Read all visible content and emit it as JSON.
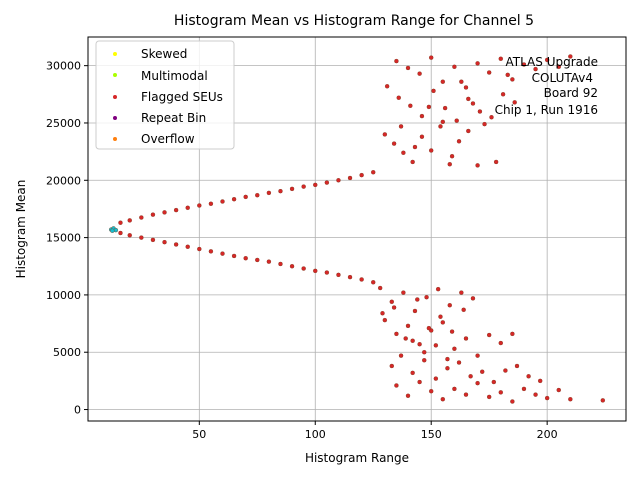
{
  "chart_data": {
    "type": "scatter",
    "title": "Histogram Mean vs Histogram Range for Channel 5",
    "xlabel": "Histogram Range",
    "ylabel": "Histogram Mean",
    "xlim": [
      2,
      234
    ],
    "ylim": [
      -1000,
      32500
    ],
    "xticks": [
      50,
      100,
      150,
      200
    ],
    "yticks": [
      0,
      5000,
      10000,
      15000,
      20000,
      25000,
      30000
    ],
    "grid": true,
    "legend_position": "top-left",
    "annotation": [
      "ATLAS Upgrade",
      "COLUTAv4",
      "Board 92",
      "Chip 1, Run 1916"
    ],
    "series": [
      {
        "name": "Skewed",
        "color": "#ffff00",
        "points": []
      },
      {
        "name": "Multimodal",
        "color": "#aaff00",
        "points": []
      },
      {
        "name": "Flagged SEUs",
        "color": "#d62728",
        "points": [
          [
            16,
            16300
          ],
          [
            20,
            16500
          ],
          [
            25,
            16750
          ],
          [
            30,
            17000
          ],
          [
            35,
            17200
          ],
          [
            40,
            17400
          ],
          [
            45,
            17600
          ],
          [
            50,
            17800
          ],
          [
            55,
            17950
          ],
          [
            60,
            18150
          ],
          [
            65,
            18350
          ],
          [
            70,
            18550
          ],
          [
            75,
            18700
          ],
          [
            80,
            18900
          ],
          [
            85,
            19050
          ],
          [
            90,
            19250
          ],
          [
            95,
            19450
          ],
          [
            100,
            19600
          ],
          [
            105,
            19800
          ],
          [
            110,
            20000
          ],
          [
            115,
            20200
          ],
          [
            120,
            20450
          ],
          [
            125,
            20700
          ],
          [
            16,
            15400
          ],
          [
            20,
            15200
          ],
          [
            25,
            15000
          ],
          [
            30,
            14800
          ],
          [
            35,
            14600
          ],
          [
            40,
            14400
          ],
          [
            45,
            14200
          ],
          [
            50,
            14000
          ],
          [
            55,
            13800
          ],
          [
            60,
            13600
          ],
          [
            65,
            13400
          ],
          [
            70,
            13200
          ],
          [
            75,
            13050
          ],
          [
            80,
            12900
          ],
          [
            85,
            12700
          ],
          [
            90,
            12500
          ],
          [
            95,
            12300
          ],
          [
            100,
            12100
          ],
          [
            105,
            11950
          ],
          [
            110,
            11750
          ],
          [
            115,
            11550
          ],
          [
            120,
            11350
          ],
          [
            125,
            11100
          ],
          [
            135,
            30400
          ],
          [
            140,
            29800
          ],
          [
            145,
            29300
          ],
          [
            150,
            30700
          ],
          [
            155,
            28600
          ],
          [
            160,
            29900
          ],
          [
            165,
            28100
          ],
          [
            170,
            30200
          ],
          [
            175,
            29400
          ],
          [
            180,
            30600
          ],
          [
            185,
            28800
          ],
          [
            190,
            30100
          ],
          [
            195,
            29700
          ],
          [
            200,
            30500
          ],
          [
            205,
            29900
          ],
          [
            210,
            30800
          ],
          [
            136,
            27200
          ],
          [
            141,
            26500
          ],
          [
            146,
            25600
          ],
          [
            151,
            27800
          ],
          [
            156,
            26300
          ],
          [
            161,
            25200
          ],
          [
            166,
            27100
          ],
          [
            171,
            26000
          ],
          [
            176,
            25500
          ],
          [
            181,
            27500
          ],
          [
            186,
            26800
          ],
          [
            130,
            24000
          ],
          [
            134,
            23200
          ],
          [
            138,
            22400
          ],
          [
            142,
            21600
          ],
          [
            146,
            23800
          ],
          [
            150,
            22600
          ],
          [
            154,
            24700
          ],
          [
            158,
            21400
          ],
          [
            162,
            23400
          ],
          [
            166,
            24300
          ],
          [
            170,
            21300
          ],
          [
            178,
            21600
          ],
          [
            131,
            28200
          ],
          [
            137,
            24700
          ],
          [
            143,
            22900
          ],
          [
            149,
            26400
          ],
          [
            155,
            25100
          ],
          [
            159,
            22100
          ],
          [
            163,
            28600
          ],
          [
            168,
            26700
          ],
          [
            173,
            24900
          ],
          [
            183,
            29200
          ],
          [
            128,
            10600
          ],
          [
            133,
            9400
          ],
          [
            138,
            10200
          ],
          [
            143,
            8600
          ],
          [
            148,
            9800
          ],
          [
            153,
            10500
          ],
          [
            158,
            9100
          ],
          [
            163,
            10200
          ],
          [
            168,
            9700
          ],
          [
            130,
            7800
          ],
          [
            135,
            6600
          ],
          [
            140,
            7300
          ],
          [
            145,
            5700
          ],
          [
            150,
            6900
          ],
          [
            155,
            7600
          ],
          [
            160,
            5300
          ],
          [
            165,
            6200
          ],
          [
            170,
            4700
          ],
          [
            175,
            6500
          ],
          [
            180,
            5800
          ],
          [
            185,
            6600
          ],
          [
            133,
            3800
          ],
          [
            137,
            4700
          ],
          [
            142,
            3200
          ],
          [
            147,
            4300
          ],
          [
            152,
            2700
          ],
          [
            157,
            3600
          ],
          [
            162,
            4100
          ],
          [
            167,
            2900
          ],
          [
            172,
            3300
          ],
          [
            177,
            2400
          ],
          [
            182,
            3400
          ],
          [
            187,
            3800
          ],
          [
            192,
            2900
          ],
          [
            197,
            2500
          ],
          [
            135,
            2100
          ],
          [
            140,
            1200
          ],
          [
            145,
            2400
          ],
          [
            150,
            1600
          ],
          [
            155,
            900
          ],
          [
            160,
            1800
          ],
          [
            165,
            1300
          ],
          [
            170,
            2300
          ],
          [
            175,
            1100
          ],
          [
            180,
            1500
          ],
          [
            185,
            700
          ],
          [
            190,
            1800
          ],
          [
            195,
            1300
          ],
          [
            200,
            1000
          ],
          [
            205,
            1700
          ],
          [
            210,
            900
          ],
          [
            224,
            800
          ],
          [
            129,
            8400
          ],
          [
            134,
            8900
          ],
          [
            139,
            6200
          ],
          [
            144,
            9600
          ],
          [
            149,
            7100
          ],
          [
            154,
            8100
          ],
          [
            159,
            6800
          ],
          [
            164,
            8700
          ],
          [
            147,
            5000
          ],
          [
            152,
            5600
          ],
          [
            142,
            6000
          ],
          [
            157,
            4400
          ]
        ]
      },
      {
        "name": "Repeat Bin",
        "color": "#800080",
        "points": []
      },
      {
        "name": "Overflow",
        "color": "#ff7f0e",
        "points": []
      },
      {
        "name": "",
        "color": "#17becf",
        "points": [
          [
            12,
            15700
          ],
          [
            13,
            15800
          ],
          [
            14,
            15650
          ],
          [
            12.5,
            15600
          ]
        ]
      }
    ]
  }
}
